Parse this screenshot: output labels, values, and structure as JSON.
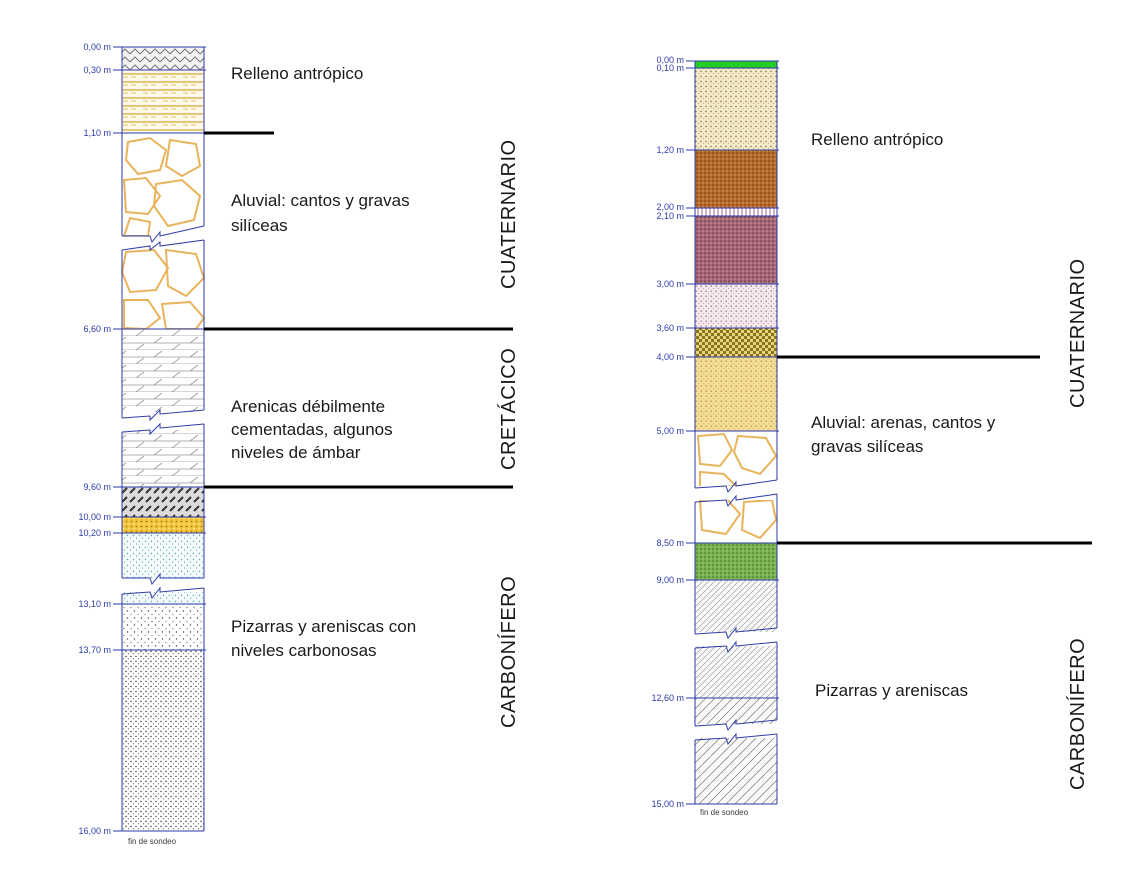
{
  "left_log": {
    "depth_labels": [
      "0,00 m",
      "0,30 m",
      "1,10 m",
      "6,60 m",
      "9,60 m",
      "10,00 m",
      "10,20 m",
      "13,10 m",
      "13,70 m",
      "16,00 m"
    ],
    "descriptions": [
      "Relleno antrópico",
      "Aluvial: cantos y gravas",
      "silíceas",
      "Arenicas débilmente",
      "cementadas, algunos",
      "niveles de ámbar",
      "Pizarras y areniscas con",
      "niveles carbonosas"
    ],
    "periods": [
      "CUATERNARIO",
      "CRETÁCICO",
      "CARBONÍFERO"
    ],
    "footer": "fin de sondeo"
  },
  "right_log": {
    "depth_labels": [
      "0,00 m",
      "0,10 m",
      "1,20 m",
      "2,00 m",
      "2,10 m",
      "3,00 m",
      "3,60 m",
      "4,00 m",
      "5,00 m",
      "8,50 m",
      "9,00 m",
      "12,60 m",
      "15,00 m"
    ],
    "descriptions": [
      "Relleno antrópico",
      "Aluvial: arenas, cantos y",
      "gravas silíceas",
      "Pizarras y areniscas"
    ],
    "periods": [
      "CUATERNARIO",
      "CARBONÍFERO"
    ],
    "footer": "fin de sondeo"
  },
  "colors": {
    "border": "#2b3aa8",
    "gravel": "#e8b35a",
    "green_top": "#22cc22",
    "brown": "#b5651d",
    "maroon": "#9c5a6a",
    "green_clay": "#6fa84a",
    "yellow_sand": "#e6c65a"
  }
}
